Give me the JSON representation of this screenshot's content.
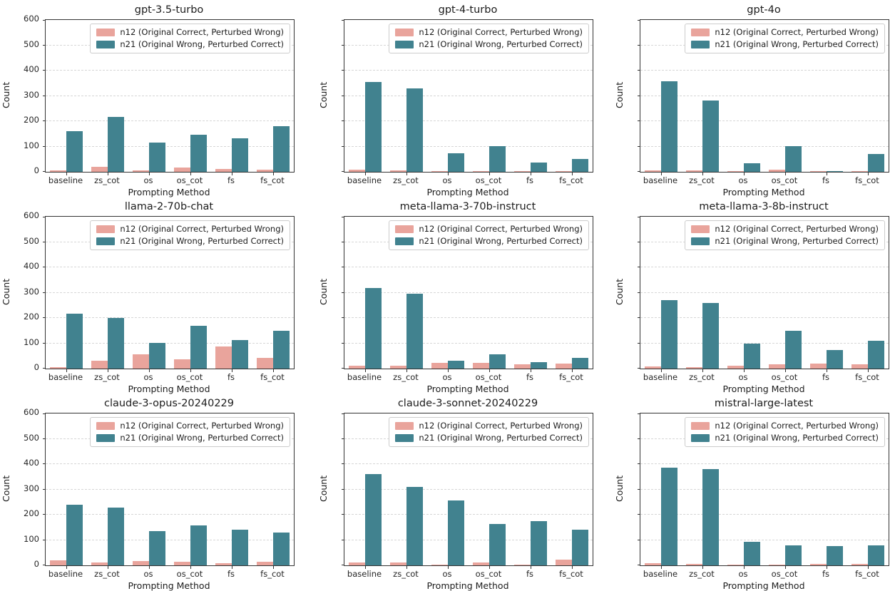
{
  "figure": {
    "background": "#ffffff",
    "colors": {
      "n12": "#E9A49C",
      "n21": "#41828F",
      "grid": "#d6d6d6",
      "spine": "#333333"
    }
  },
  "chart_defaults": {
    "type": "bar",
    "categories": [
      "baseline",
      "zs_cot",
      "os",
      "os_cot",
      "fs",
      "fs_cot"
    ],
    "xlabel": "Prompting Method",
    "ylabel": "Count",
    "ylim": [
      0,
      600
    ],
    "yticks": [
      0,
      100,
      200,
      300,
      400,
      500,
      600
    ],
    "grid": "dashed horizontal",
    "legend_position": "upper right inside",
    "legend": [
      "n12 (Original Correct, Perturbed Wrong)",
      "n21 (Original Wrong, Perturbed Correct)"
    ]
  },
  "chart_data": [
    {
      "type": "bar",
      "title": "gpt-3.5-turbo",
      "show_y_tick_labels": true,
      "series": [
        {
          "name": "n12 (Original Correct, Perturbed Wrong)",
          "key": "n12",
          "values": [
            6,
            21,
            6,
            17,
            12,
            8
          ]
        },
        {
          "name": "n21 (Original Wrong, Perturbed Correct)",
          "key": "n21",
          "values": [
            160,
            218,
            115,
            147,
            132,
            180
          ]
        }
      ]
    },
    {
      "type": "bar",
      "title": "gpt-4-turbo",
      "show_y_tick_labels": false,
      "series": [
        {
          "name": "n12 (Original Correct, Perturbed Wrong)",
          "key": "n12",
          "values": [
            8,
            7,
            2,
            4,
            3,
            2
          ]
        },
        {
          "name": "n21 (Original Wrong, Perturbed Correct)",
          "key": "n21",
          "values": [
            355,
            330,
            73,
            101,
            38,
            50
          ]
        }
      ]
    },
    {
      "type": "bar",
      "title": "gpt-4o",
      "show_y_tick_labels": false,
      "series": [
        {
          "name": "n12 (Original Correct, Perturbed Wrong)",
          "key": "n12",
          "values": [
            7,
            5,
            1,
            8,
            2,
            4
          ]
        },
        {
          "name": "n21 (Original Wrong, Perturbed Correct)",
          "key": "n21",
          "values": [
            357,
            281,
            34,
            100,
            2,
            71
          ]
        }
      ]
    },
    {
      "type": "bar",
      "title": "llama-2-70b-chat",
      "show_y_tick_labels": true,
      "series": [
        {
          "name": "n12 (Original Correct, Perturbed Wrong)",
          "key": "n12",
          "values": [
            5,
            30,
            56,
            38,
            88,
            42
          ]
        },
        {
          "name": "n21 (Original Wrong, Perturbed Correct)",
          "key": "n21",
          "values": [
            217,
            200,
            101,
            170,
            113,
            150
          ]
        }
      ]
    },
    {
      "type": "bar",
      "title": "meta-llama-3-70b-instruct",
      "show_y_tick_labels": false,
      "series": [
        {
          "name": "n12 (Original Correct, Perturbed Wrong)",
          "key": "n12",
          "values": [
            10,
            11,
            22,
            23,
            17,
            19
          ]
        },
        {
          "name": "n21 (Original Wrong, Perturbed Correct)",
          "key": "n21",
          "values": [
            318,
            295,
            30,
            57,
            26,
            43
          ]
        }
      ]
    },
    {
      "type": "bar",
      "title": "meta-llama-3-8b-instruct",
      "show_y_tick_labels": false,
      "series": [
        {
          "name": "n12 (Original Correct, Perturbed Wrong)",
          "key": "n12",
          "values": [
            8,
            5,
            10,
            16,
            21,
            16
          ]
        },
        {
          "name": "n21 (Original Wrong, Perturbed Correct)",
          "key": "n21",
          "values": [
            270,
            259,
            98,
            150,
            73,
            110
          ]
        }
      ]
    },
    {
      "type": "bar",
      "title": "claude-3-opus-20240229",
      "show_y_tick_labels": true,
      "series": [
        {
          "name": "n12 (Original Correct, Perturbed Wrong)",
          "key": "n12",
          "values": [
            19,
            11,
            16,
            13,
            9,
            15
          ]
        },
        {
          "name": "n21 (Original Wrong, Perturbed Correct)",
          "key": "n21",
          "values": [
            240,
            229,
            136,
            157,
            140,
            130
          ]
        }
      ]
    },
    {
      "type": "bar",
      "title": "claude-3-sonnet-20240229",
      "show_y_tick_labels": false,
      "series": [
        {
          "name": "n12 (Original Correct, Perturbed Wrong)",
          "key": "n12",
          "values": [
            10,
            10,
            1,
            10,
            4,
            22
          ]
        },
        {
          "name": "n21 (Original Wrong, Perturbed Correct)",
          "key": "n21",
          "values": [
            360,
            311,
            257,
            162,
            175,
            140
          ]
        }
      ]
    },
    {
      "type": "bar",
      "title": "mistral-large-latest",
      "show_y_tick_labels": false,
      "series": [
        {
          "name": "n12 (Original Correct, Perturbed Wrong)",
          "key": "n12",
          "values": [
            8,
            6,
            3,
            4,
            6,
            6
          ]
        },
        {
          "name": "n21 (Original Wrong, Perturbed Correct)",
          "key": "n21",
          "values": [
            386,
            380,
            92,
            79,
            75,
            79
          ]
        }
      ]
    }
  ]
}
